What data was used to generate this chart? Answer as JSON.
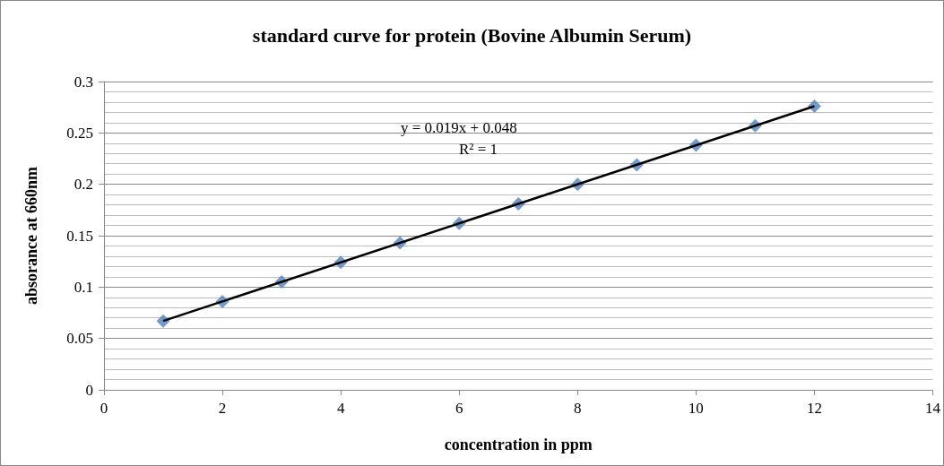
{
  "chart_data": {
    "type": "scatter",
    "title": "standard curve for protein (Bovine Albumin Serum)",
    "xlabel": "concentration in ppm",
    "ylabel": "absorance at 660nm",
    "annotations": [
      "y = 0.019x + 0.048",
      "R² = 1"
    ],
    "xlim": [
      0,
      14
    ],
    "xticks": [
      0,
      2,
      4,
      6,
      8,
      10,
      12,
      14
    ],
    "ylim": [
      0,
      0.3
    ],
    "yticks": [
      0,
      0.05,
      0.1,
      0.15,
      0.2,
      0.25,
      0.3
    ],
    "grid": "y",
    "series": [
      {
        "marker": "diamond",
        "color": "#4f81bd",
        "x": [
          1,
          2,
          3,
          4,
          5,
          6,
          7,
          8,
          9,
          10,
          11,
          12
        ],
        "values": [
          0.067,
          0.086,
          0.105,
          0.124,
          0.143,
          0.162,
          0.181,
          0.2,
          0.219,
          0.238,
          0.257,
          0.276
        ]
      },
      {
        "type": "line",
        "marker": "none",
        "color": "#000000",
        "x": [
          1,
          12
        ],
        "values": [
          0.067,
          0.276
        ]
      }
    ]
  }
}
